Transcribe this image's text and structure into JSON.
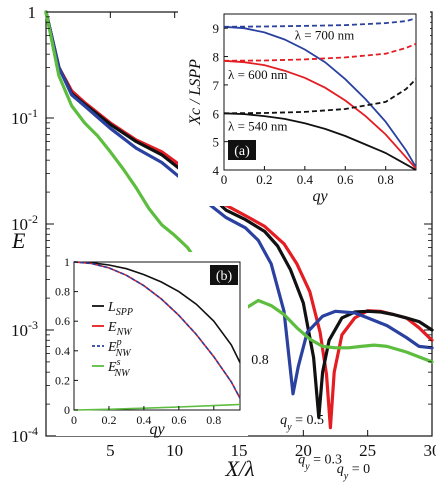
{
  "chart_data": [
    {
      "type": "line",
      "scale": {
        "y": "log",
        "x": "linear"
      },
      "xlabel": "X/λ",
      "ylabel": "E",
      "xlim": [
        0,
        30
      ],
      "ylim": [
        0.0001,
        1
      ],
      "x_ticks": [
        5,
        10,
        15,
        20,
        25,
        30
      ],
      "y_ticks": [
        {
          "value": 1,
          "label": "1"
        },
        {
          "value": 0.1,
          "label": "10-1"
        },
        {
          "value": 0.01,
          "label": "10-2"
        },
        {
          "value": 0.001,
          "label": "10-3"
        },
        {
          "value": 0.0001,
          "label": "10-4"
        }
      ],
      "series": [
        {
          "key": "q0",
          "color": "#e41d23",
          "width": 3.2,
          "points": [
            [
              0,
              1
            ],
            [
              1,
              0.3
            ],
            [
              2,
              0.18
            ],
            [
              3,
              0.14
            ],
            [
              5,
              0.09
            ],
            [
              7,
              0.062
            ],
            [
              9,
              0.048
            ],
            [
              11,
              0.032
            ],
            [
              12.5,
              0.022
            ],
            [
              14,
              0.015
            ],
            [
              15.5,
              0.012
            ],
            [
              17,
              0.0095
            ],
            [
              18.5,
              0.0065
            ],
            [
              19.5,
              0.0042
            ],
            [
              20.5,
              0.0023
            ],
            [
              21.3,
              0.00095
            ],
            [
              21.8,
              0.00038
            ],
            [
              22.1,
              0.00012
            ],
            [
              22.4,
              0.0004
            ],
            [
              23,
              0.0009
            ],
            [
              24,
              0.0013
            ],
            [
              25,
              0.00152
            ],
            [
              26,
              0.0015
            ],
            [
              27,
              0.0014
            ],
            [
              28,
              0.0013
            ],
            [
              29,
              0.00105
            ],
            [
              30,
              0.0008
            ]
          ]
        },
        {
          "key": "q03",
          "color": "#111111",
          "width": 3.2,
          "points": [
            [
              0,
              1
            ],
            [
              1,
              0.3
            ],
            [
              2,
              0.17
            ],
            [
              3,
              0.135
            ],
            [
              5,
              0.087
            ],
            [
              7,
              0.06
            ],
            [
              9,
              0.045
            ],
            [
              11,
              0.029
            ],
            [
              12.5,
              0.02
            ],
            [
              14,
              0.0135
            ],
            [
              15.5,
              0.011
            ],
            [
              17,
              0.0085
            ],
            [
              18,
              0.0062
            ],
            [
              19,
              0.0037
            ],
            [
              20,
              0.0018
            ],
            [
              20.8,
              0.00055
            ],
            [
              21.2,
              0.00015
            ],
            [
              21.5,
              0.0004
            ],
            [
              22,
              0.0008
            ],
            [
              23,
              0.0013
            ],
            [
              24,
              0.00148
            ],
            [
              25,
              0.0015
            ],
            [
              26,
              0.00148
            ],
            [
              27,
              0.0014
            ],
            [
              28,
              0.0013
            ],
            [
              29,
              0.0012
            ],
            [
              30,
              0.001
            ]
          ]
        },
        {
          "key": "q05",
          "color": "#2a41a0",
          "width": 3.2,
          "points": [
            [
              0,
              1
            ],
            [
              1,
              0.3
            ],
            [
              2,
              0.165
            ],
            [
              3,
              0.13
            ],
            [
              5,
              0.08
            ],
            [
              7,
              0.052
            ],
            [
              9,
              0.038
            ],
            [
              11,
              0.024
            ],
            [
              12.5,
              0.016
            ],
            [
              14,
              0.0115
            ],
            [
              15.5,
              0.0092
            ],
            [
              16.5,
              0.007
            ],
            [
              17.5,
              0.0042
            ],
            [
              18.5,
              0.0015
            ],
            [
              19.2,
              0.00025
            ],
            [
              19.6,
              0.00045
            ],
            [
              20.3,
              0.00095
            ],
            [
              21.5,
              0.00135
            ],
            [
              22.5,
              0.0015
            ],
            [
              24,
              0.00145
            ],
            [
              25,
              0.0013
            ],
            [
              26.5,
              0.0011
            ],
            [
              28,
              0.00085
            ],
            [
              29,
              0.0007
            ],
            [
              30,
              0.00068
            ]
          ]
        },
        {
          "key": "q08",
          "color": "#5cbd3f",
          "width": 3.2,
          "points": [
            [
              0,
              1
            ],
            [
              1,
              0.25
            ],
            [
              2,
              0.13
            ],
            [
              3,
              0.09
            ],
            [
              4,
              0.068
            ],
            [
              5,
              0.048
            ],
            [
              6,
              0.033
            ],
            [
              7,
              0.022
            ],
            [
              8,
              0.014
            ],
            [
              9,
              0.0098
            ],
            [
              10,
              0.0078
            ],
            [
              11,
              0.006
            ],
            [
              12,
              0.004
            ],
            [
              13,
              0.0018
            ],
            [
              14,
              0.00068
            ],
            [
              14.5,
              0.00085
            ],
            [
              15.5,
              0.0016
            ],
            [
              16.5,
              0.0019
            ],
            [
              17.5,
              0.0017
            ],
            [
              18.5,
              0.0014
            ],
            [
              19.5,
              0.00105
            ],
            [
              20.5,
              0.00082
            ],
            [
              21.5,
              0.0007
            ],
            [
              22.5,
              0.00068
            ],
            [
              23.5,
              0.00068
            ],
            [
              24.5,
              0.0007
            ],
            [
              25.5,
              0.00072
            ],
            [
              26.5,
              0.0007
            ],
            [
              28,
              0.00062
            ],
            [
              30,
              0.0005
            ]
          ]
        }
      ],
      "annotations": [
        {
          "key": "qy08",
          "text": "qy = 0.8",
          "ax": 13.9,
          "ay": 0.00048
        },
        {
          "key": "qy05",
          "text": "qy = 0.5",
          "ax": 18.2,
          "ay": 0.00013
        },
        {
          "key": "qy03",
          "text": "qy = 0.3",
          "ax": 19.6,
          "ay": 5.5e-05
        },
        {
          "key": "qy0",
          "text": "qy = 0",
          "ax": 22.6,
          "ay": 4.5e-05
        }
      ]
    },
    {
      "type": "line",
      "panel_label": "(a)",
      "xlabel": "qy",
      "ylabel": "Xc / LSPP",
      "xlim": [
        0,
        0.95
      ],
      "ylim": [
        4,
        9.5
      ],
      "x_ticks": [
        0,
        0.2,
        0.4,
        0.6,
        0.8
      ],
      "y_ticks": [
        4,
        5,
        6,
        7,
        8,
        9
      ],
      "grid": false,
      "series": [
        {
          "key": "a700d",
          "color": "#2a41a0",
          "dash": true,
          "points": [
            [
              0,
              9.05
            ],
            [
              0.2,
              9.06
            ],
            [
              0.4,
              9.08
            ],
            [
              0.6,
              9.11
            ],
            [
              0.8,
              9.18
            ],
            [
              0.9,
              9.25
            ],
            [
              0.95,
              9.35
            ]
          ]
        },
        {
          "key": "a700s",
          "color": "#2a41a0",
          "dash": false,
          "points": [
            [
              0,
              9.05
            ],
            [
              0.1,
              9.0
            ],
            [
              0.2,
              8.85
            ],
            [
              0.3,
              8.6
            ],
            [
              0.4,
              8.25
            ],
            [
              0.5,
              7.8
            ],
            [
              0.6,
              7.2
            ],
            [
              0.7,
              6.5
            ],
            [
              0.8,
              5.7
            ],
            [
              0.9,
              4.7
            ],
            [
              0.95,
              4.1
            ]
          ]
        },
        {
          "key": "a600d",
          "color": "#e41d23",
          "dash": true,
          "points": [
            [
              0,
              7.85
            ],
            [
              0.2,
              7.86
            ],
            [
              0.4,
              7.9
            ],
            [
              0.6,
              7.97
            ],
            [
              0.8,
              8.1
            ],
            [
              0.9,
              8.3
            ],
            [
              0.95,
              8.45
            ]
          ]
        },
        {
          "key": "a600s",
          "color": "#e41d23",
          "dash": false,
          "points": [
            [
              0,
              7.85
            ],
            [
              0.1,
              7.8
            ],
            [
              0.2,
              7.7
            ],
            [
              0.3,
              7.5
            ],
            [
              0.4,
              7.25
            ],
            [
              0.5,
              6.9
            ],
            [
              0.6,
              6.45
            ],
            [
              0.7,
              5.9
            ],
            [
              0.8,
              5.25
            ],
            [
              0.9,
              4.45
            ],
            [
              0.95,
              4.05
            ]
          ]
        },
        {
          "key": "a540d",
          "color": "#111111",
          "dash": true,
          "points": [
            [
              0,
              6.0
            ],
            [
              0.2,
              6.01
            ],
            [
              0.4,
              6.05
            ],
            [
              0.6,
              6.15
            ],
            [
              0.8,
              6.4
            ],
            [
              0.9,
              6.85
            ],
            [
              0.95,
              7.2
            ]
          ]
        },
        {
          "key": "a540s",
          "color": "#111111",
          "dash": false,
          "points": [
            [
              0,
              6.0
            ],
            [
              0.1,
              5.97
            ],
            [
              0.2,
              5.9
            ],
            [
              0.3,
              5.8
            ],
            [
              0.4,
              5.65
            ],
            [
              0.5,
              5.45
            ],
            [
              0.6,
              5.2
            ],
            [
              0.7,
              4.9
            ],
            [
              0.8,
              4.6
            ],
            [
              0.9,
              4.2
            ],
            [
              0.95,
              4.0
            ]
          ]
        }
      ],
      "labels": [
        {
          "key": "l700",
          "text": "λ = 700 nm",
          "ax": 0.35,
          "ay": 8.6
        },
        {
          "key": "l600",
          "text": "λ = 600 nm",
          "ax": 0.02,
          "ay": 7.2
        },
        {
          "key": "l540",
          "text": "λ = 540 nm",
          "ax": 0.02,
          "ay": 5.4
        }
      ]
    },
    {
      "type": "line",
      "panel_label": "(b)",
      "xlabel": "qy",
      "xlim": [
        0,
        0.95
      ],
      "ylim": [
        0,
        1
      ],
      "x_ticks": [
        0,
        0.2,
        0.4,
        0.6,
        0.8
      ],
      "y_ticks": [
        0,
        0.2,
        0.4,
        0.6,
        0.8,
        1
      ],
      "series": [
        {
          "key": "bL",
          "name": "LSPP",
          "color": "#111111",
          "dash": false,
          "points": [
            [
              0,
              1
            ],
            [
              0.1,
              0.995
            ],
            [
              0.2,
              0.98
            ],
            [
              0.3,
              0.955
            ],
            [
              0.4,
              0.915
            ],
            [
              0.5,
              0.865
            ],
            [
              0.6,
              0.8
            ],
            [
              0.7,
              0.715
            ],
            [
              0.8,
              0.6
            ],
            [
              0.9,
              0.44
            ],
            [
              0.95,
              0.32
            ]
          ]
        },
        {
          "key": "bE",
          "name": "ENW",
          "color": "#e41d23",
          "dash": false,
          "points": [
            [
              0,
              1
            ],
            [
              0.1,
              0.99
            ],
            [
              0.2,
              0.96
            ],
            [
              0.3,
              0.91
            ],
            [
              0.4,
              0.84
            ],
            [
              0.5,
              0.75
            ],
            [
              0.6,
              0.64
            ],
            [
              0.7,
              0.51
            ],
            [
              0.8,
              0.36
            ],
            [
              0.9,
              0.19
            ],
            [
              0.95,
              0.08
            ]
          ]
        },
        {
          "key": "bEp",
          "name": "ENW^p",
          "color": "#2a41a0",
          "dash": true,
          "points": [
            [
              0,
              1
            ],
            [
              0.1,
              0.99
            ],
            [
              0.2,
              0.96
            ],
            [
              0.3,
              0.91
            ],
            [
              0.4,
              0.84
            ],
            [
              0.5,
              0.75
            ],
            [
              0.6,
              0.64
            ],
            [
              0.7,
              0.51
            ],
            [
              0.8,
              0.36
            ],
            [
              0.9,
              0.19
            ],
            [
              0.95,
              0.08
            ]
          ]
        },
        {
          "key": "bEs",
          "name": "ENW^s",
          "color": "#5cbd3f",
          "dash": false,
          "points": [
            [
              0,
              0
            ],
            [
              0.2,
              0.005
            ],
            [
              0.4,
              0.012
            ],
            [
              0.6,
              0.02
            ],
            [
              0.8,
              0.03
            ],
            [
              0.9,
              0.035
            ],
            [
              0.95,
              0.037
            ]
          ]
        }
      ],
      "legend": {
        "position": "left",
        "entries": [
          {
            "base": "L",
            "sub": "SPP",
            "sup": "",
            "color": "#111111",
            "dash": false
          },
          {
            "base": "E",
            "sub": "NW",
            "sup": "",
            "color": "#e41d23",
            "dash": false
          },
          {
            "base": "E",
            "sub": "NW",
            "sup": "p",
            "color": "#2a41a0",
            "dash": true
          },
          {
            "base": "E",
            "sub": "NW",
            "sup": "s",
            "color": "#5cbd3f",
            "dash": false
          }
        ]
      }
    }
  ]
}
